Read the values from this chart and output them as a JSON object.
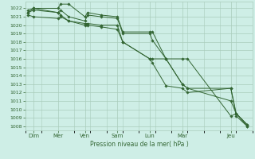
{
  "background_color": "#ceeee6",
  "grid_color": "#aaccbb",
  "line_color": "#336633",
  "xlabel_text": "Pression niveau de la mer( hPa )",
  "ylim_min": 1007.5,
  "ylim_max": 1022.8,
  "xlim_min": 0,
  "xlim_max": 84,
  "day_positions": [
    3,
    12,
    22,
    34,
    46,
    58,
    76
  ],
  "day_labels": [
    "Dim",
    "Mer",
    "Ven",
    "Sam",
    "Lun",
    "Mar",
    "Jeu"
  ],
  "series": [
    {
      "x": [
        1,
        3,
        12,
        13,
        16,
        22,
        23,
        28,
        34,
        36,
        46,
        47,
        52,
        58,
        60,
        76,
        78,
        82
      ],
      "y": [
        1021.5,
        1022.0,
        1022.0,
        1022.5,
        1022.5,
        1021.0,
        1021.5,
        1021.2,
        1021.0,
        1019.2,
        1019.2,
        1019.2,
        1016.0,
        1016.0,
        1016.0,
        1009.2,
        1009.5,
        1008.0
      ]
    },
    {
      "x": [
        1,
        3,
        12,
        13,
        16,
        22,
        23,
        28,
        34,
        36,
        46,
        47,
        52,
        58,
        60,
        76,
        78,
        82
      ],
      "y": [
        1021.5,
        1021.8,
        1021.5,
        1021.8,
        1021.0,
        1020.5,
        1021.2,
        1021.0,
        1020.8,
        1019.0,
        1019.0,
        1018.2,
        1016.0,
        1013.0,
        1012.5,
        1011.0,
        1009.5,
        1008.2
      ]
    },
    {
      "x": [
        1,
        3,
        12,
        13,
        16,
        22,
        23,
        28,
        34,
        36,
        46,
        47,
        52,
        58,
        60,
        76,
        78,
        82
      ],
      "y": [
        1021.2,
        1021.0,
        1020.8,
        1021.0,
        1020.5,
        1020.2,
        1020.2,
        1020.0,
        1020.0,
        1018.0,
        1016.0,
        1016.0,
        1016.0,
        1013.0,
        1012.5,
        1012.5,
        1009.5,
        1008.2
      ]
    },
    {
      "x": [
        1,
        3,
        12,
        13,
        16,
        22,
        23,
        28,
        34,
        36,
        46,
        47,
        52,
        58,
        60,
        76,
        78,
        82
      ],
      "y": [
        1021.8,
        1022.0,
        1021.5,
        1021.2,
        1020.5,
        1020.0,
        1020.0,
        1019.8,
        1019.5,
        1018.0,
        1016.0,
        1015.5,
        1012.8,
        1012.5,
        1012.0,
        1012.5,
        1009.2,
        1008.0
      ]
    }
  ]
}
